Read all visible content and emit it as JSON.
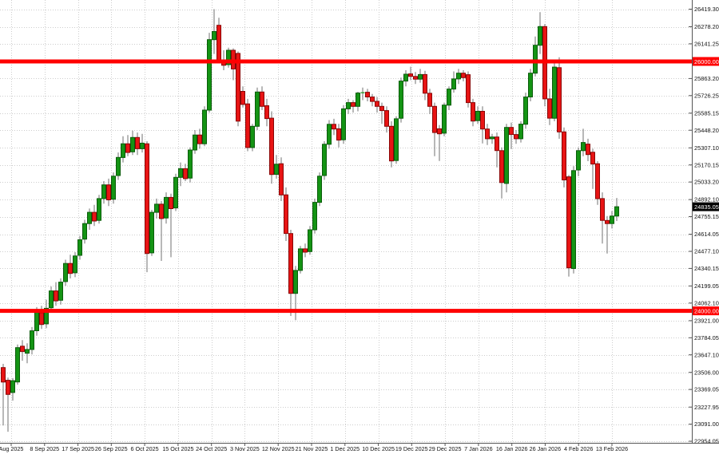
{
  "window": {
    "background": "#ffffff"
  },
  "chart_data": {
    "type": "candlestick",
    "title": "",
    "xlabel": "",
    "ylabel": "",
    "grid": true,
    "legend_position": "none",
    "time_axis_labels": [
      "Aug 2025",
      "8 Sep 2025",
      "17 Sep 2025",
      "26 Sep 2025",
      "6 Oct 2025",
      "15 Oct 2025",
      "24 Oct 2025",
      "3 Nov 2025",
      "12 Nov 2025",
      "21 Nov 2025",
      "1 Dec 2025",
      "10 Dec 2025",
      "19 Dec 2025",
      "29 Dec 2025",
      "7 Jan 2026",
      "16 Jan 2026",
      "26 Jan 2026",
      "4 Feb 2026",
      "13 Feb 2026"
    ],
    "price_axis_labels": [
      "26419.30",
      "26278.20",
      "26141.25",
      "25863.20",
      "25726.25",
      "25585.15",
      "25448.20",
      "25307.10",
      "25170.15",
      "25033.20",
      "24892.10",
      "24755.15",
      "24614.05",
      "24477.10",
      "24340.15",
      "24199.05",
      "24062.10",
      "23921.00",
      "23784.05",
      "23647.10",
      "23506.00",
      "23369.05",
      "23227.95",
      "23091.00",
      "22954.05"
    ],
    "price_range": {
      "top": 26419.3,
      "bottom": 22954.05
    },
    "horizontal_lines": [
      {
        "label": "26000.00",
        "price": 26000.0,
        "color": "#ff0000"
      },
      {
        "label": "24000.00",
        "price": 24000.0,
        "color": "#ff0000"
      }
    ],
    "current_price": {
      "label": "24835.05",
      "price": 24835.05,
      "bg": "#000000",
      "text_color": "#ffffff"
    },
    "colors": {
      "bull_fill": "#149414",
      "bull_stroke": "#0a5c0a",
      "bear_fill": "#e81414",
      "bear_stroke": "#8a0606",
      "wick": "#707070",
      "grid": "#cdcdcd",
      "axis_line": "#555555",
      "text": "#111111",
      "line_red": "#ff0000",
      "background": "#ffffff"
    },
    "candles": [
      [
        23545,
        23575,
        23080,
        23429
      ],
      [
        23443,
        23465,
        23030,
        23330
      ],
      [
        23345,
        23460,
        23280,
        23440
      ],
      [
        23430,
        23730,
        23408,
        23705
      ],
      [
        23716,
        23765,
        23600,
        23673
      ],
      [
        23660,
        23740,
        23580,
        23690
      ],
      [
        23690,
        23870,
        23650,
        23840
      ],
      [
        23840,
        24030,
        23800,
        23990
      ],
      [
        23985,
        24040,
        23855,
        23890
      ],
      [
        23895,
        24090,
        23860,
        24020
      ],
      [
        24025,
        24195,
        24000,
        24160
      ],
      [
        24160,
        24230,
        24040,
        24080
      ],
      [
        24085,
        24260,
        24050,
        24230
      ],
      [
        24235,
        24410,
        24200,
        24380
      ],
      [
        24380,
        24450,
        24260,
        24300
      ],
      [
        24305,
        24470,
        24270,
        24440
      ],
      [
        24445,
        24600,
        24410,
        24570
      ],
      [
        24575,
        24730,
        24540,
        24700
      ],
      [
        24700,
        24820,
        24650,
        24790
      ],
      [
        24790,
        24850,
        24680,
        24720
      ],
      [
        24725,
        24930,
        24700,
        24900
      ],
      [
        24900,
        25040,
        24860,
        25010
      ],
      [
        25010,
        25060,
        24840,
        24890
      ],
      [
        24895,
        25110,
        24860,
        25080
      ],
      [
        25085,
        25270,
        25050,
        25230
      ],
      [
        25230,
        25400,
        25190,
        25340
      ],
      [
        25340,
        25410,
        25240,
        25270
      ],
      [
        25275,
        25445,
        25250,
        25390
      ],
      [
        25390,
        25430,
        25250,
        25300
      ],
      [
        25300,
        25420,
        25270,
        25345
      ],
      [
        25340,
        25360,
        24310,
        24460
      ],
      [
        24465,
        24810,
        24440,
        24790
      ],
      [
        24790,
        24900,
        24740,
        24855
      ],
      [
        24855,
        24880,
        24400,
        24740
      ],
      [
        24745,
        24950,
        24700,
        24910
      ],
      [
        24910,
        24940,
        24430,
        24820
      ],
      [
        24825,
        25100,
        24800,
        25070
      ],
      [
        25070,
        25190,
        25000,
        25140
      ],
      [
        25140,
        25180,
        25040,
        25060
      ],
      [
        25065,
        25310,
        25030,
        25290
      ],
      [
        25290,
        25450,
        25260,
        25410
      ],
      [
        25410,
        25460,
        25300,
        25340
      ],
      [
        25340,
        25640,
        25320,
        25610
      ],
      [
        25610,
        26230,
        25590,
        26175
      ],
      [
        26175,
        26419.3,
        26060,
        26240
      ],
      [
        26290,
        26350,
        25990,
        26010
      ],
      [
        26010,
        26090,
        25930,
        25970
      ],
      [
        25975,
        26110,
        25950,
        26090
      ],
      [
        26090,
        26105,
        25850,
        25940
      ],
      [
        26065,
        26080,
        25480,
        25522
      ],
      [
        25760,
        25800,
        25630,
        25655
      ],
      [
        25660,
        25700,
        25280,
        25310
      ],
      [
        25310,
        25500,
        25280,
        25480
      ],
      [
        25480,
        25790,
        25450,
        25755
      ],
      [
        25755,
        25800,
        25610,
        25640
      ],
      [
        25645,
        25700,
        25480,
        25542
      ],
      [
        25545,
        25600,
        25020,
        25093
      ],
      [
        25095,
        25250,
        25060,
        25176
      ],
      [
        25180,
        25230,
        24880,
        24930
      ],
      [
        24930,
        24990,
        24560,
        24620
      ],
      [
        24620,
        24650,
        23959,
        24140
      ],
      [
        24140,
        24360,
        23925,
        24324
      ],
      [
        24324,
        24520,
        24300,
        24497
      ],
      [
        24497,
        24540,
        24430,
        24471
      ],
      [
        24475,
        24680,
        24450,
        24650
      ],
      [
        24650,
        24900,
        24620,
        24870
      ],
      [
        24870,
        25110,
        24840,
        25080
      ],
      [
        25085,
        25360,
        25050,
        25336
      ],
      [
        25336,
        25530,
        25300,
        25496
      ],
      [
        25496,
        25540,
        25410,
        25458
      ],
      [
        25460,
        25500,
        25310,
        25369
      ],
      [
        25372,
        25650,
        25340,
        25620
      ],
      [
        25620,
        25700,
        25580,
        25670
      ],
      [
        25670,
        25690,
        25590,
        25640
      ],
      [
        25640,
        25757,
        25600,
        25747
      ],
      [
        25747,
        25790,
        25690,
        25753
      ],
      [
        25753,
        25780,
        25680,
        25715
      ],
      [
        25715,
        25740,
        25640,
        25680
      ],
      [
        25680,
        25715,
        25590,
        25640
      ],
      [
        25640,
        25670,
        25500,
        25606
      ],
      [
        25606,
        25640,
        25430,
        25480
      ],
      [
        25480,
        25520,
        25150,
        25202
      ],
      [
        25205,
        25560,
        25180,
        25540
      ],
      [
        25545,
        25870,
        25510,
        25843
      ],
      [
        25843,
        25930,
        25800,
        25898
      ],
      [
        25900,
        25958,
        25850,
        25880
      ],
      [
        25880,
        25915,
        25820,
        25858
      ],
      [
        25858,
        25940,
        25830,
        25895
      ],
      [
        25895,
        25925,
        25690,
        25745
      ],
      [
        25745,
        25780,
        25580,
        25640
      ],
      [
        25640,
        25670,
        25240,
        25430
      ],
      [
        25460,
        25490,
        25202,
        25420
      ],
      [
        25425,
        25670,
        25400,
        25650
      ],
      [
        25650,
        25800,
        25610,
        25779
      ],
      [
        25779,
        25920,
        25750,
        25860
      ],
      [
        25860,
        25940,
        25820,
        25906
      ],
      [
        25906,
        25930,
        25840,
        25870
      ],
      [
        25894,
        25920,
        25630,
        25670
      ],
      [
        25670,
        25700,
        25480,
        25522
      ],
      [
        25525,
        25640,
        25500,
        25600
      ],
      [
        25600,
        25640,
        25343,
        25458
      ],
      [
        25458,
        25500,
        25330,
        25380
      ],
      [
        25380,
        25420,
        25340,
        25394
      ],
      [
        25394,
        25430,
        25150,
        25285
      ],
      [
        25285,
        25311,
        24901,
        25029
      ],
      [
        25022,
        25500,
        24950,
        25471
      ],
      [
        25471,
        25510,
        25298,
        25414
      ],
      [
        25414,
        25450,
        25340,
        25380
      ],
      [
        25380,
        25520,
        25350,
        25497
      ],
      [
        25497,
        25750,
        25460,
        25715
      ],
      [
        25715,
        25940,
        25680,
        25906
      ],
      [
        25906,
        26200,
        25880,
        26130
      ],
      [
        26130,
        26395,
        26060,
        26280
      ],
      [
        26280,
        26300,
        25640,
        25700
      ],
      [
        25700,
        25780,
        25490,
        25545
      ],
      [
        25545,
        26010,
        25520,
        25955
      ],
      [
        25950,
        26034,
        25380,
        25435
      ],
      [
        25435,
        25470,
        24990,
        25050
      ],
      [
        25075,
        25090,
        24275,
        24345
      ],
      [
        24340,
        25160,
        24300,
        25125
      ],
      [
        25130,
        25310,
        25080,
        25285
      ],
      [
        25285,
        25460,
        25240,
        25350
      ],
      [
        25337,
        25380,
        25200,
        25253
      ],
      [
        25272,
        25300,
        24978,
        25177
      ],
      [
        25180,
        25200,
        24850,
        24900
      ],
      [
        24900,
        24950,
        24540,
        24725
      ],
      [
        24725,
        24760,
        24460,
        24700
      ],
      [
        24700,
        24800,
        24660,
        24760
      ],
      [
        24760,
        24905,
        24720,
        24835.05
      ]
    ]
  }
}
